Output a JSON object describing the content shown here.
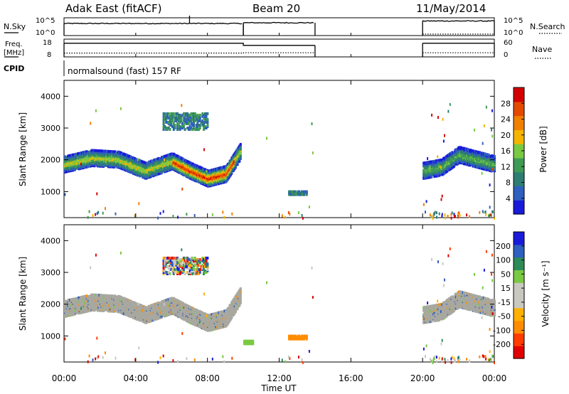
{
  "header": {
    "title": "Adak East (fitACF)",
    "beam": "Beam 20",
    "date": "11/May/2014"
  },
  "panels": {
    "nsky": {
      "label": "N.Sky",
      "tick_top": "10^5",
      "tick_bottom": "10^0"
    },
    "nsearch": {
      "label": "N.Search",
      "tick_top": "10^5",
      "tick_bottom": "10^0"
    },
    "freq": {
      "label_line1": "Freq.",
      "label_line2": "[MHz]",
      "tick_top": "18",
      "tick_bottom": "8"
    },
    "nave": {
      "label": "Nave",
      "tick_top": "60",
      "tick_bottom": "0"
    },
    "cpid": {
      "label": "CPID",
      "value": "normalsound (fast) 157 RF"
    }
  },
  "colors": {
    "power_scale": [
      "#1a1adb",
      "#2f5fbf",
      "#2e7d73",
      "#3f9a55",
      "#7ac943",
      "#f5b400",
      "#f08000",
      "#e34a00",
      "#d40000"
    ],
    "velocity_scale": [
      "#e00000",
      "#ff3b00",
      "#ff8c00",
      "#ffb000",
      "#c8c8c0",
      "#c8c8c0",
      "#7ac943",
      "#2e8b57",
      "#2f5fbf",
      "#1a1adb"
    ],
    "ground_scatter": "#a8a8a0"
  },
  "chart_data": [
    {
      "type": "line",
      "name": "nsky-nsearch",
      "xlabel": "",
      "x_unit": "hours UT",
      "xlim": [
        0,
        24
      ],
      "series": [
        {
          "name": "N.Sky",
          "style": "solid",
          "segments": [
            [
              0,
              10
            ],
            [
              10,
              14
            ],
            [
              20,
              24
            ]
          ],
          "level": [
            3.4,
            3.6,
            4.1
          ]
        },
        {
          "name": "N.Search",
          "style": "dotted",
          "segments": [
            [
              20,
              24
            ]
          ],
          "level": [
            0.2
          ]
        }
      ],
      "ylim_log10": [
        0,
        5
      ]
    },
    {
      "type": "line",
      "name": "freq-nave",
      "xlim": [
        0,
        24
      ],
      "series": [
        {
          "name": "Freq.",
          "style": "solid",
          "unit": "MHz",
          "ylim": [
            8,
            18
          ],
          "points": [
            [
              0,
              15.7
            ],
            [
              10,
              15.7
            ],
            [
              10,
              14.5
            ],
            [
              14,
              14.5
            ],
            [
              20,
              15.7
            ],
            [
              24,
              15.7
            ]
          ]
        },
        {
          "name": "Nave",
          "style": "dotted",
          "ylim": [
            0,
            60
          ],
          "points": [
            [
              0,
              13
            ],
            [
              10,
              13
            ],
            [
              10,
              14
            ],
            [
              14,
              14
            ],
            [
              20,
              14
            ],
            [
              24,
              14
            ]
          ]
        }
      ]
    },
    {
      "type": "heatmap",
      "name": "power",
      "ylabel": "Slant Range [km]",
      "xlim": [
        0,
        24
      ],
      "ylim": [
        180,
        4500
      ],
      "yticks": [
        "1000",
        "2000",
        "3000",
        "4000"
      ],
      "colorbar": {
        "label": "Power [dB]",
        "ticks": [
          "4",
          "8",
          "12",
          "16",
          "20",
          "24",
          "28"
        ],
        "range": [
          0,
          30
        ]
      },
      "features": [
        {
          "desc": "main band",
          "t": [
            0.0,
            1.5,
            3.0,
            4.5,
            6.0,
            7.0,
            8.0,
            9.0,
            9.8
          ],
          "range_km": [
            1900,
            2100,
            2050,
            1700,
            2000,
            1700,
            1450,
            1600,
            2300
          ],
          "peak_db": 24
        },
        {
          "desc": "late band",
          "t": [
            20.0,
            21.0,
            22.0,
            23.0,
            24.0
          ],
          "range_km": [
            1700,
            1800,
            2200,
            2050,
            1900
          ],
          "peak_db": 12
        },
        {
          "desc": "upper patch",
          "t": [
            5.5,
            8.0
          ],
          "range_km": [
            3000,
            3500
          ],
          "peak_db": 10
        },
        {
          "desc": "patch",
          "t": [
            12.5,
            13.5
          ],
          "range_km": [
            950,
            1050
          ],
          "peak_db": 12
        }
      ]
    },
    {
      "type": "heatmap",
      "name": "velocity",
      "ylabel": "Slant Range [km]",
      "xlabel": "Time UT",
      "xlim": [
        0,
        24
      ],
      "xticks": [
        "00:00",
        "04:00",
        "08:00",
        "12:00",
        "16:00",
        "20:00",
        "00:00"
      ],
      "ylim": [
        180,
        4500
      ],
      "yticks": [
        "1000",
        "2000",
        "3000",
        "4000"
      ],
      "colorbar": {
        "label": "Velocity [m s⁻¹]",
        "ticks": [
          "-200",
          "-100",
          "-50",
          "-15",
          "15",
          "50",
          "100",
          "200"
        ],
        "range": [
          -250,
          250
        ]
      },
      "features": [
        {
          "desc": "main band (ground scatter)",
          "t": [
            0.0,
            1.5,
            3.0,
            4.5,
            6.0,
            7.0,
            8.0,
            9.0,
            9.8
          ],
          "range_km": [
            1900,
            2100,
            2050,
            1700,
            2000,
            1700,
            1450,
            1600,
            2300
          ]
        },
        {
          "desc": "late band (ground scatter)",
          "t": [
            20.0,
            21.0,
            22.0,
            23.0,
            24.0
          ],
          "range_km": [
            1700,
            1800,
            2200,
            2050,
            1900
          ]
        },
        {
          "desc": "patch",
          "t": [
            12.5,
            13.5
          ],
          "range_km": [
            950,
            1050
          ],
          "velocity": -60
        },
        {
          "desc": "patch",
          "t": [
            10.0,
            10.5
          ],
          "range_km": [
            800,
            900
          ],
          "velocity": 40
        }
      ]
    }
  ]
}
